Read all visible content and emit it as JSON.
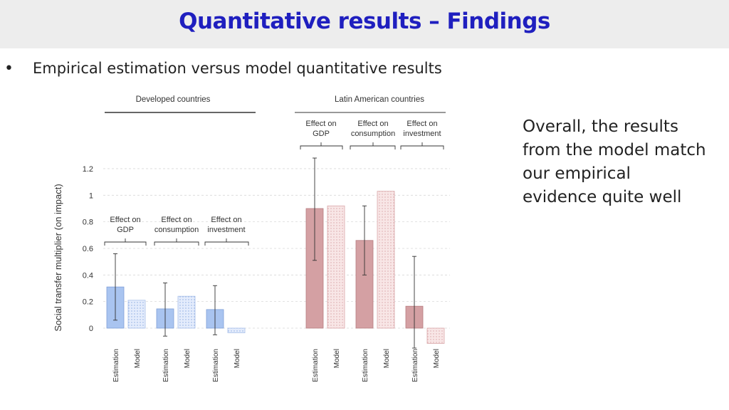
{
  "header": {
    "title": "Quantitative results – Findings"
  },
  "bullet": {
    "marker": "•",
    "text": "Empirical estimation versus model quantitative results"
  },
  "note": {
    "text": "Overall, the results from the model match our empirical evidence quite well"
  },
  "colors": {
    "estimation_developed": "#a9c4f0",
    "model_developed": "#dbe6fb",
    "estimation_latin": "#d4a0a3",
    "model_latin": "#f6e1e1"
  },
  "chart_data": {
    "type": "bar",
    "ylabel": "Social transfer multiplier (on impact)",
    "ylim": [
      -0.12,
      1.2
    ],
    "yticks": [
      "1.2",
      "1",
      "0.8",
      "0.6",
      "0.4",
      "0.2",
      "0"
    ],
    "grid": true,
    "panels": [
      {
        "title": "Developed countries",
        "groups": [
          {
            "label": "Effect on GDP",
            "categories": [
              "Estimation",
              "Model"
            ],
            "values": [
              0.31,
              0.21
            ],
            "error_low": 0.06,
            "error_high": 0.56
          },
          {
            "label": "Effect on consumption",
            "categories": [
              "Estimation",
              "Model"
            ],
            "values": [
              0.145,
              0.24
            ],
            "error_low": -0.06,
            "error_high": 0.34
          },
          {
            "label": "Effect on investment",
            "categories": [
              "Estimation",
              "Model"
            ],
            "values": [
              0.14,
              -0.035
            ],
            "error_low": -0.05,
            "error_high": 0.32
          }
        ]
      },
      {
        "title": "Latin American countries",
        "groups": [
          {
            "label": "Effect on GDP",
            "categories": [
              "Estimation",
              "Model"
            ],
            "values": [
              0.9,
              0.92
            ],
            "error_low": 0.51,
            "error_high": 1.28
          },
          {
            "label": "Effect on consumption",
            "categories": [
              "Estimation",
              "Model"
            ],
            "values": [
              0.66,
              1.03
            ],
            "error_low": 0.4,
            "error_high": 0.92
          },
          {
            "label": "Effect on investment",
            "categories": [
              "Estimation",
              "Model"
            ],
            "values": [
              0.165,
              -0.115
            ],
            "error_low": -0.15,
            "error_high": 0.54
          }
        ]
      }
    ]
  }
}
